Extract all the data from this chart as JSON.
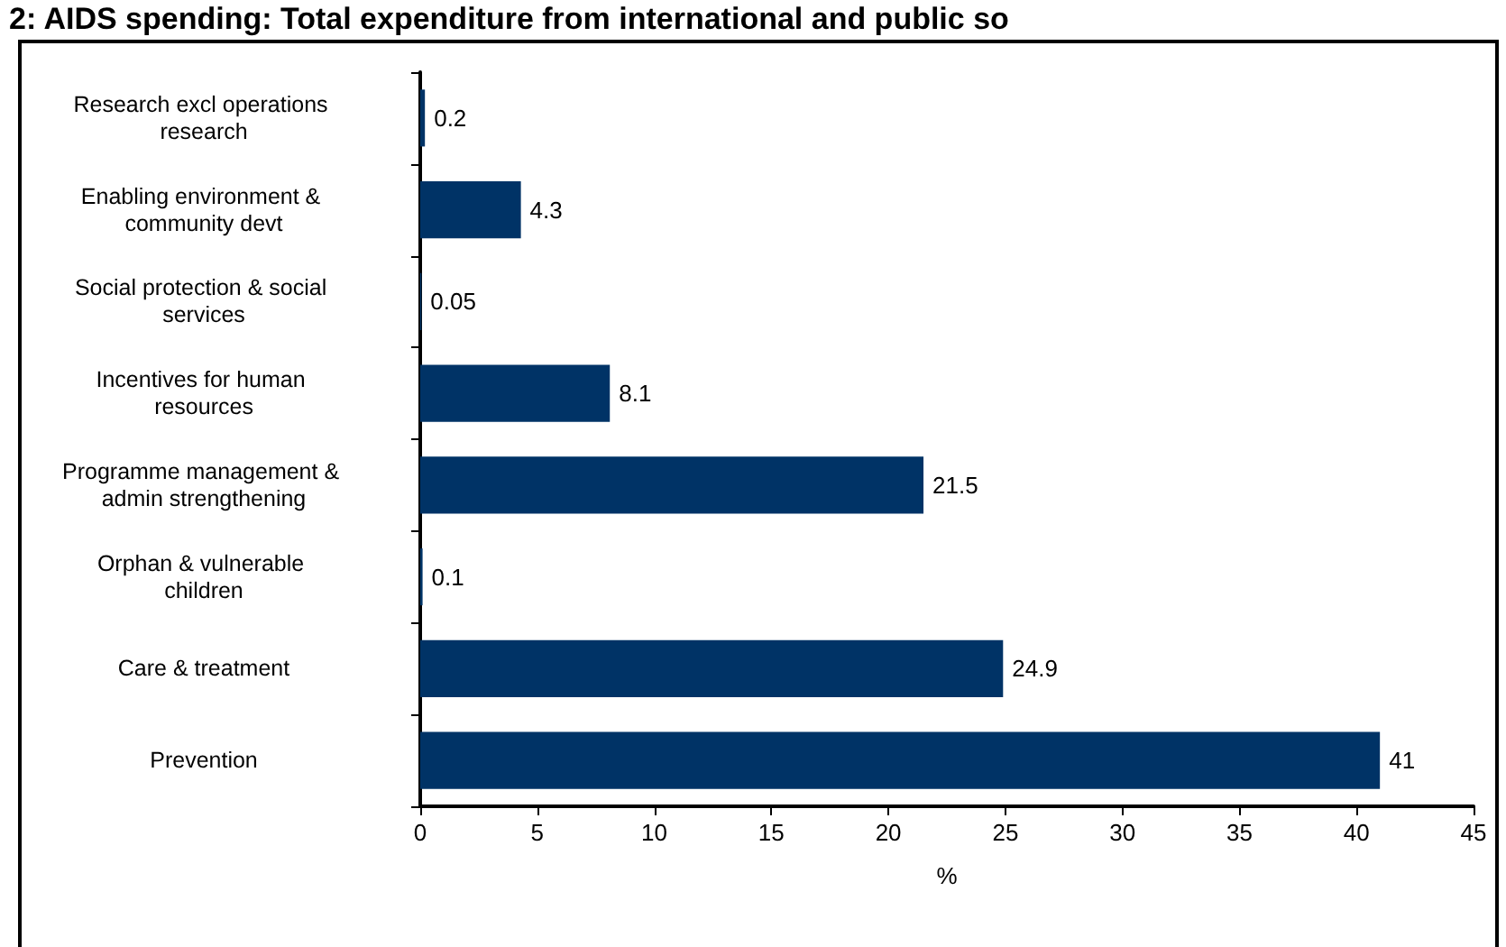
{
  "chart_data": {
    "type": "bar",
    "orientation": "horizontal",
    "title": "2: AIDS spending: Total expenditure from international and public so",
    "categories": [
      "Research excl operations research",
      "Enabling environment & community devt",
      "Social protection & social services",
      "Incentives for human resources",
      "Programme management & admin strengthening",
      "Orphan & vulnerable children",
      "Care & treatment",
      "Prevention"
    ],
    "values": [
      0.2,
      4.3,
      0.05,
      8.1,
      21.5,
      0.1,
      24.9,
      41
    ],
    "color": "#003366",
    "xlabel": "%",
    "xlim": [
      0,
      45
    ],
    "xticks": [
      0,
      5,
      10,
      15,
      20,
      25,
      30,
      35,
      40,
      45
    ],
    "grid": false,
    "data_labels": true
  }
}
